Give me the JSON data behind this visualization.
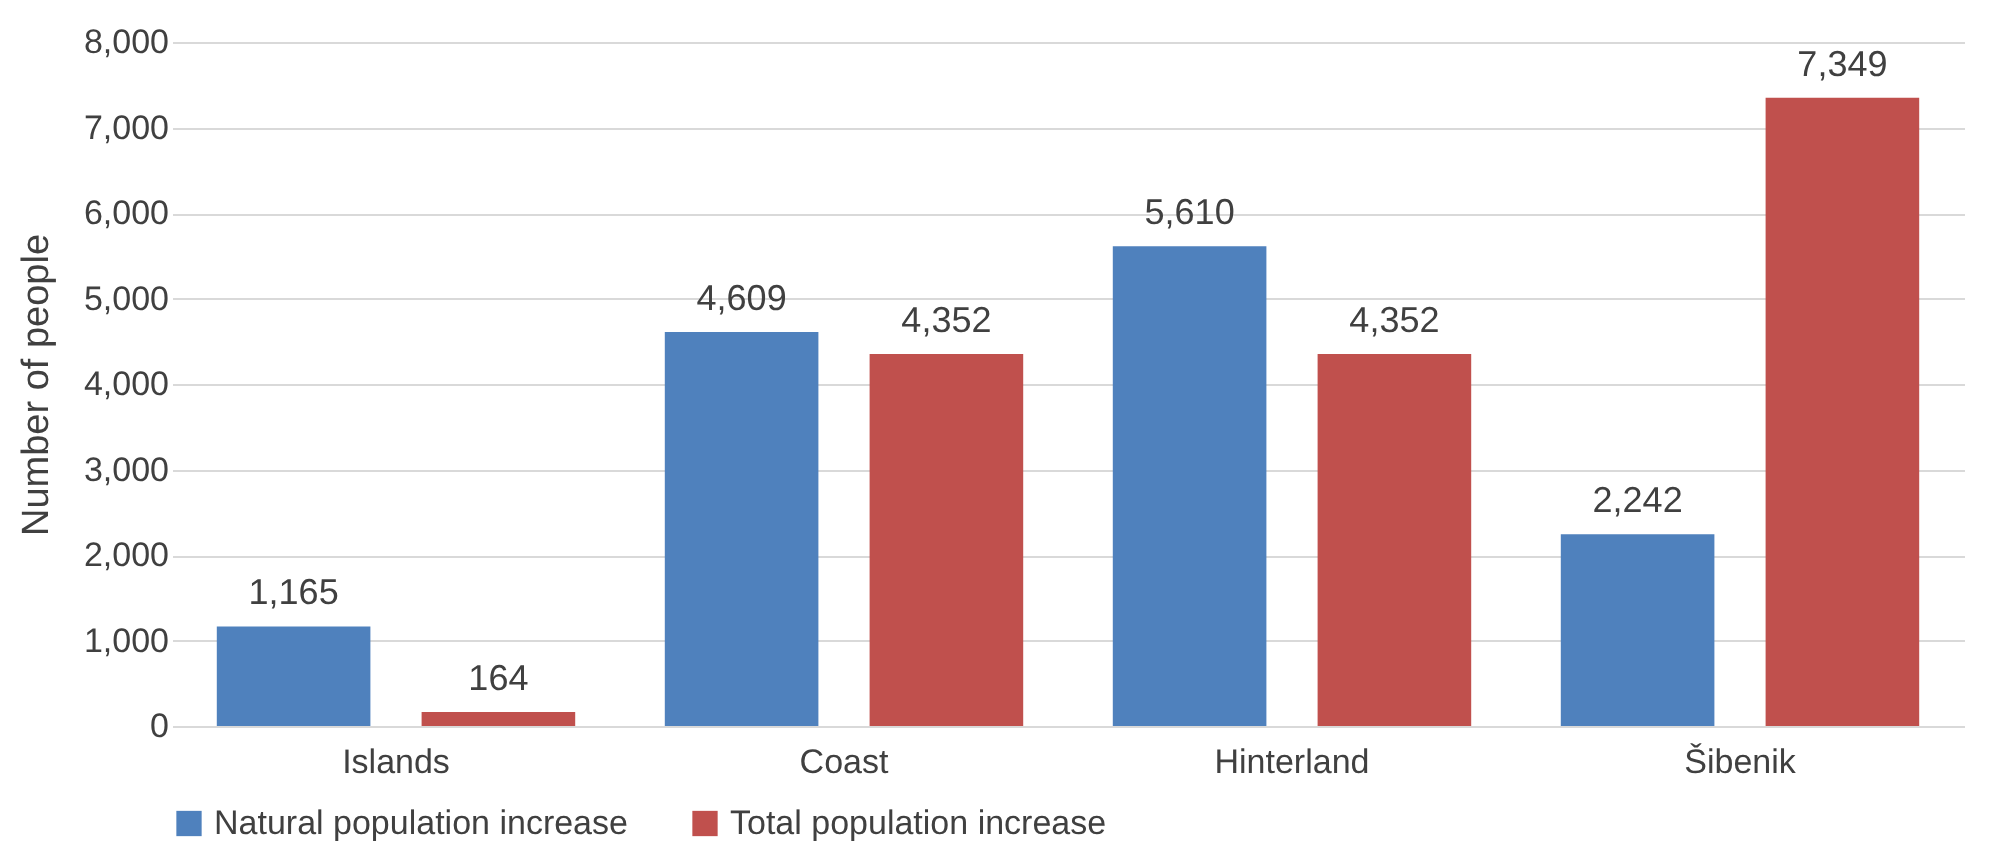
{
  "chart_data": {
    "type": "bar",
    "ylabel": "Number of people",
    "categories": [
      "Islands",
      "Coast",
      "Hinterland",
      "Šibenik"
    ],
    "series": [
      {
        "name": "Natural population increase",
        "color": "#4f81bd",
        "values": [
          1165,
          4609,
          5610,
          2242
        ],
        "value_labels": [
          "1,165",
          "4,609",
          "5,610",
          "2,242"
        ]
      },
      {
        "name": "Total population increase",
        "color": "#c0504d",
        "values": [
          164,
          4352,
          4352,
          7349
        ],
        "value_labels": [
          "164",
          "4,352",
          "4,352",
          "7,349"
        ]
      }
    ],
    "ylim": [
      0,
      8000
    ],
    "yticks": [
      0,
      {
        "value": 1000,
        "label": "1,000"
      },
      {
        "value": 2000,
        "label": "2,000"
      },
      {
        "value": 3000,
        "label": "3,000"
      },
      {
        "value": 4000,
        "label": "4,000"
      },
      {
        "value": 5000,
        "label": "5,000"
      },
      {
        "value": 6000,
        "label": "6,000"
      },
      {
        "value": 7000,
        "label": "7,000"
      },
      {
        "value": 8000,
        "label": "8,000"
      }
    ],
    "grid": "y",
    "legend": "bottom"
  }
}
